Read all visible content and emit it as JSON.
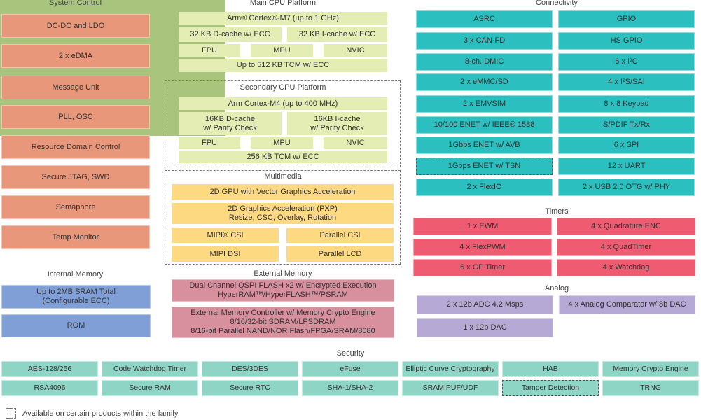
{
  "system_control": {
    "title": "System Control",
    "items": [
      "DC-DC and LDO",
      "2 x eDMA",
      "Message Unit",
      "PLL, OSC",
      "Resource Domain Control",
      "Secure JTAG, SWD",
      "Semaphore",
      "Temp Monitor"
    ]
  },
  "internal_memory": {
    "title": "Internal Memory",
    "items": [
      [
        "Up to 2MB SRAM Total",
        "(Configurable ECC)"
      ],
      [
        "ROM"
      ]
    ]
  },
  "main_cpu": {
    "title": "Main CPU Platform",
    "core": "Arm® Cortex®-M7 (up to 1 GHz)",
    "dcache": [
      "32 KB D-cache w/ ECC"
    ],
    "icache": [
      "32 KB I-cache w/ ECC"
    ],
    "fpu": "FPU",
    "mpu": "MPU",
    "nvic": "NVIC",
    "tcm": "Up to 512 KB TCM w/ ECC",
    "optional": false
  },
  "secondary_cpu": {
    "title": "Secondary CPU Platform",
    "core": "Arm Cortex-M4 (up to 400 MHz)",
    "dcache": [
      "16KB D-cache",
      "w/ Parity Check"
    ],
    "icache": [
      "16KB I-cache",
      "w/ Parity Check"
    ],
    "fpu": "FPU",
    "mpu": "MPU",
    "nvic": "NVIC",
    "tcm": "256 KB TCM w/ ECC",
    "optional": true
  },
  "multimedia": {
    "title": "Multimedia",
    "optional": true,
    "gpu": [
      "2D GPU with Vector Graphics Acceleration"
    ],
    "pxp": [
      "2D Graphics Acceleration (PXP)",
      "Resize, CSC, Overlay, Rotation"
    ],
    "mipi_csi": [
      "MIPI® CSI"
    ],
    "parallel_csi": [
      "Parallel CSI"
    ],
    "mipi_dsi": [
      "MIPI DSI"
    ],
    "parallel_lcd": [
      "Parallel LCD"
    ]
  },
  "external_memory": {
    "title": "External Memory",
    "items": [
      [
        "Dual Channel QSPI FLASH x2 w/ Encrypted Execution",
        "HyperRAM™/HyperFLASH™/PSRAM"
      ],
      [
        "External Memory Controller w/ Memory Crypto Engine",
        "8/16/32-bit SDRAM/LPSDRAM",
        "8/16-bit Parallel NAND/NOR Flash/FPGA/SRAM/8080"
      ]
    ]
  },
  "connectivity": {
    "title": "Connectivity",
    "left": [
      {
        "label": "ASRC"
      },
      {
        "label": "3 x CAN-FD"
      },
      {
        "label": "8-ch. DMIC"
      },
      {
        "label": "2 x eMMC/SD"
      },
      {
        "label": "2 x EMVSIM"
      },
      {
        "label": "10/100 ENET w/ IEEE® 1588"
      },
      {
        "label": "1Gbps ENET w/ AVB"
      },
      {
        "label": "1Gbps ENET w/ TSN",
        "optional": true
      },
      {
        "label": "2 x FlexIO"
      }
    ],
    "right": [
      {
        "label": "GPIO"
      },
      {
        "label": "HS GPIO"
      },
      {
        "label": "6 x I²C"
      },
      {
        "label": "4 x I²S/SAI"
      },
      {
        "label": "8 x 8 Keypad"
      },
      {
        "label": "S/PDIF Tx/Rx"
      },
      {
        "label": "6 x SPI"
      },
      {
        "label": "12 x UART"
      },
      {
        "label": "2 x USB 2.0 OTG w/ PHY"
      }
    ]
  },
  "timers": {
    "title": "Timers",
    "left": [
      "1 x EWM",
      "4 x FlexPWM",
      "6 x GP Timer"
    ],
    "right": [
      "4 x Quadrature ENC",
      "4 x QuadTimer",
      "4 x Watchdog"
    ]
  },
  "analog": {
    "title": "Analog",
    "items": [
      "2 x 12b ADC 4.2 Msps",
      "4 x Analog Comparator w/ 8b DAC",
      "1 x 12b DAC"
    ]
  },
  "security": {
    "title": "Security",
    "row1": [
      {
        "label": "AES-128/256"
      },
      {
        "label": "Code Watchdog Timer"
      },
      {
        "label": "DES/3DES"
      },
      {
        "label": "eFuse"
      },
      {
        "label": "Elliptic Curve Cryptography"
      },
      {
        "label": "HAB"
      },
      {
        "label": "Memory Crypto Engine"
      }
    ],
    "row2": [
      {
        "label": "RSA4096"
      },
      {
        "label": "Secure RAM"
      },
      {
        "label": "Secure RTC"
      },
      {
        "label": "SHA-1/SHA-2"
      },
      {
        "label": "SRAM PUF/UDF"
      },
      {
        "label": "Tamper Detection",
        "optional": true
      },
      {
        "label": "TRNG"
      }
    ]
  },
  "legend": {
    "label": "Available on certain products within the family"
  },
  "colors": {
    "system_control": "#e9977b",
    "internal_memory": "#7f9fd6",
    "cpu_outer": "#a9c47d",
    "cpu_inner": "#e3edb4",
    "multimedia": "#fdd982",
    "external_memory": "#d8909f",
    "connectivity": "#2cbfbf",
    "timers": "#ef5b71",
    "analog": "#b7a9d6",
    "security": "#8fd5c6"
  }
}
